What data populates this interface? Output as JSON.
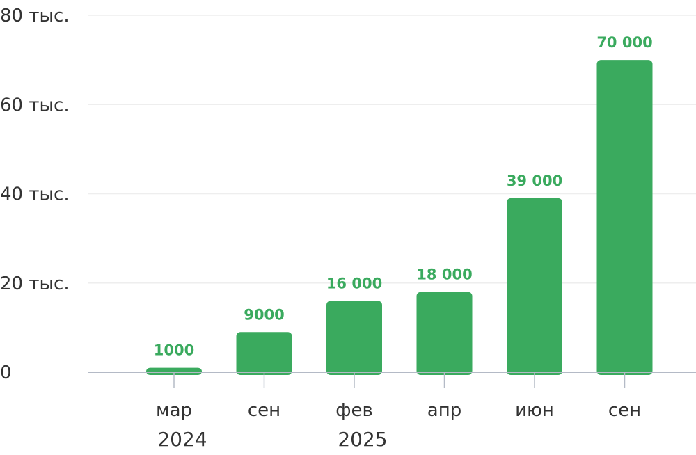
{
  "chart_data": {
    "type": "bar",
    "categories": [
      "мар",
      "сен",
      "фев",
      "апр",
      "июн",
      "сен"
    ],
    "year_labels": [
      {
        "text": "2024",
        "category_index": 0
      },
      {
        "text": "2025",
        "category_index": 2
      }
    ],
    "values": [
      1000,
      9000,
      16000,
      18000,
      39000,
      70000
    ],
    "value_labels": [
      "1000",
      "9000",
      "16 000",
      "18 000",
      "39 000",
      "70 000"
    ],
    "y_ticks": [
      {
        "value": 0,
        "label": "0"
      },
      {
        "value": 20000,
        "label": "20 тыс."
      },
      {
        "value": 40000,
        "label": "40 тыс."
      },
      {
        "value": 60000,
        "label": "60 тыс."
      },
      {
        "value": 80000,
        "label": "80 тыс."
      }
    ],
    "ylim": [
      0,
      80000
    ],
    "title": "",
    "xlabel": "",
    "ylabel": "",
    "grid": true,
    "legend": "none",
    "colors": {
      "bar": "#3aaa5e",
      "value_label": "#3aaa5e",
      "grid": "#eeeeee",
      "axis": "#b4bac6",
      "text": "#333333"
    }
  }
}
